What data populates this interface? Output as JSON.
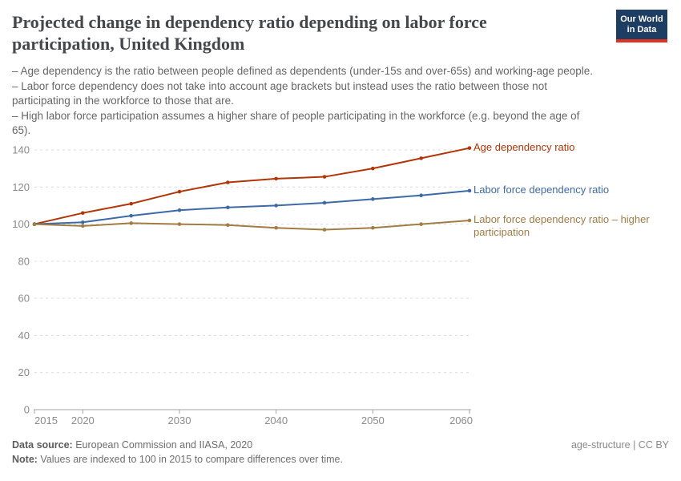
{
  "header": {
    "title": "Projected change in dependency ratio depending on labor force participation, United Kingdom",
    "logo": {
      "line1": "Our World",
      "line2": "in Data"
    }
  },
  "subtitle_lines": [
    "– Age dependency is the ratio between people defined as dependents (under-15s and over-65s) and working-age people.",
    "– Labor force dependency does not take into account age brackets but instead uses the ratio between those not",
    "participating in the workforce to those that are.",
    "– High labor force participation assumes a higher share of people participating in the workforce (e.g. beyond the age of",
    "65)."
  ],
  "chart_data": {
    "type": "line",
    "title": "Projected change in dependency ratio depending on labor force participation, United Kingdom",
    "x": [
      2015,
      2020,
      2025,
      2030,
      2035,
      2040,
      2045,
      2050,
      2055,
      2060
    ],
    "series": [
      {
        "name": "Age dependency ratio",
        "color": "#b13507",
        "values": [
          100,
          106,
          111,
          117.5,
          122.5,
          124.5,
          125.5,
          130,
          135.5,
          141
        ]
      },
      {
        "name": "Labor force dependency ratio",
        "color": "#3d6aa6",
        "values": [
          100,
          101,
          104.5,
          107.5,
          109,
          110,
          111.5,
          113.5,
          115.5,
          118
        ]
      },
      {
        "name": "Labor force dependency ratio – higher participation",
        "color": "#a17c44",
        "values": [
          100,
          99,
          100.5,
          100,
          99.5,
          98,
          97,
          98,
          100,
          102
        ]
      }
    ],
    "xlim": [
      2015,
      2060
    ],
    "ylim": [
      0,
      140
    ],
    "yticks": [
      0,
      20,
      40,
      60,
      80,
      100,
      120,
      140
    ],
    "xticks": [
      2015,
      2020,
      2030,
      2040,
      2050,
      2060
    ],
    "grid": "horizontal-dashed",
    "markers": true,
    "legend_position": "right-of-line-ends"
  },
  "footer": {
    "data_source_label": "Data source:",
    "data_source_value": " European Commission and IIASA, 2020",
    "note_label": "Note:",
    "note_value": " Values are indexed to 100 in 2015 to compare differences over time.",
    "attribution": "age-structure | CC BY"
  },
  "colors": {
    "logo_bg": "#1d3d63",
    "logo_bar": "#e0321f",
    "title_text": "#45484b",
    "subtitle_text": "#666666",
    "axis_label": "#8b8b8b",
    "gridline": "#dadada",
    "axis_line": "#a3a3a3"
  }
}
